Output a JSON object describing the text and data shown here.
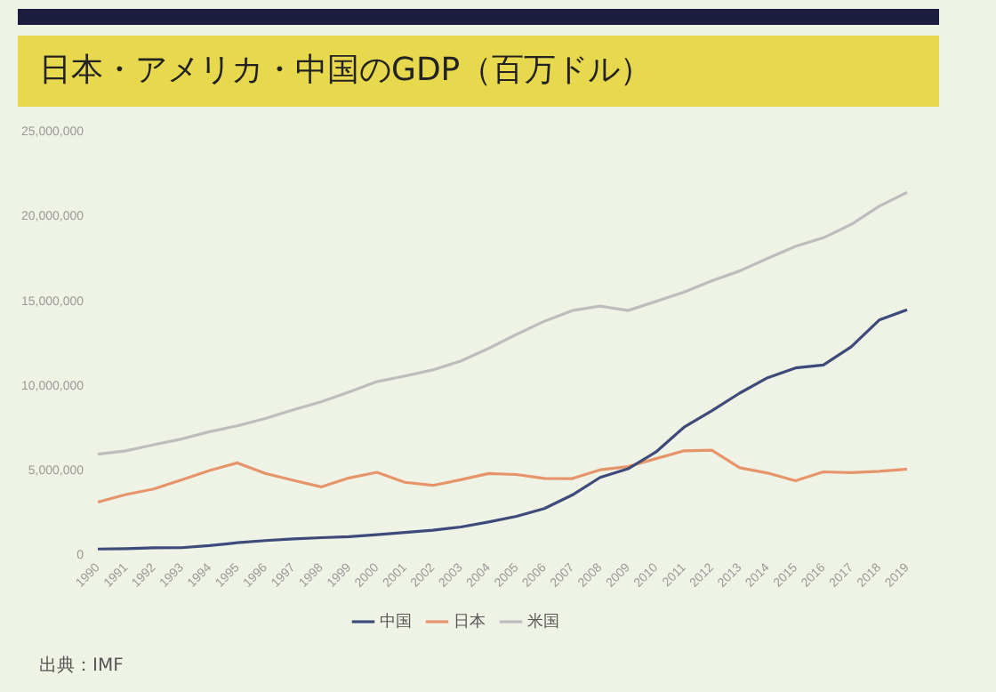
{
  "chart_data": {
    "type": "line",
    "title": "日本・アメリカ・中国のGDP（百万ドル）",
    "categories": [
      "1990",
      "1991",
      "1992",
      "1993",
      "1994",
      "1995",
      "1996",
      "1997",
      "1998",
      "1999",
      "2000",
      "2001",
      "2002",
      "2003",
      "2004",
      "2005",
      "2006",
      "2007",
      "2008",
      "2009",
      "2010",
      "2011",
      "2012",
      "2013",
      "2014",
      "2015",
      "2016",
      "2017",
      "2018",
      "2019"
    ],
    "series": [
      {
        "name": "中国",
        "color": "#3d4a7a",
        "values": [
          360000,
          380000,
          430000,
          440000,
          560000,
          730000,
          860000,
          960000,
          1030000,
          1090000,
          1210000,
          1340000,
          1470000,
          1660000,
          1960000,
          2290000,
          2750000,
          3550000,
          4590000,
          5100000,
          6090000,
          7550000,
          8530000,
          9570000,
          10480000,
          11060000,
          11230000,
          12310000,
          13890000,
          14500000
        ]
      },
      {
        "name": "日本",
        "color": "#e8946a",
        "values": [
          3130000,
          3580000,
          3910000,
          4450000,
          5000000,
          5450000,
          4830000,
          4420000,
          4030000,
          4560000,
          4890000,
          4300000,
          4120000,
          4450000,
          4820000,
          4760000,
          4530000,
          4520000,
          5040000,
          5230000,
          5700000,
          6160000,
          6200000,
          5160000,
          4850000,
          4390000,
          4920000,
          4870000,
          4950000,
          5080000
        ]
      },
      {
        "name": "米国",
        "color": "#bdbdbd",
        "values": [
          5960000,
          6160000,
          6520000,
          6860000,
          7290000,
          7640000,
          8070000,
          8580000,
          9060000,
          9630000,
          10250000,
          10580000,
          10940000,
          11460000,
          12210000,
          13040000,
          13820000,
          14450000,
          14710000,
          14450000,
          14990000,
          15540000,
          16200000,
          16790000,
          17530000,
          18240000,
          18750000,
          19540000,
          20610000,
          21430000
        ]
      }
    ],
    "ylim": [
      0,
      25000000
    ],
    "yticks": [
      {
        "value": 0,
        "label": "0"
      },
      {
        "value": 5000000,
        "label": "5,000,000"
      },
      {
        "value": 10000000,
        "label": "10,000,000"
      },
      {
        "value": 15000000,
        "label": "15,000,000"
      },
      {
        "value": 20000000,
        "label": "20,000,000"
      },
      {
        "value": 25000000,
        "label": "25,000,000"
      }
    ],
    "grid": false,
    "legend": "bottom",
    "marker": "none",
    "line_style": "solid",
    "annotations": [
      "出典：IMF"
    ]
  }
}
